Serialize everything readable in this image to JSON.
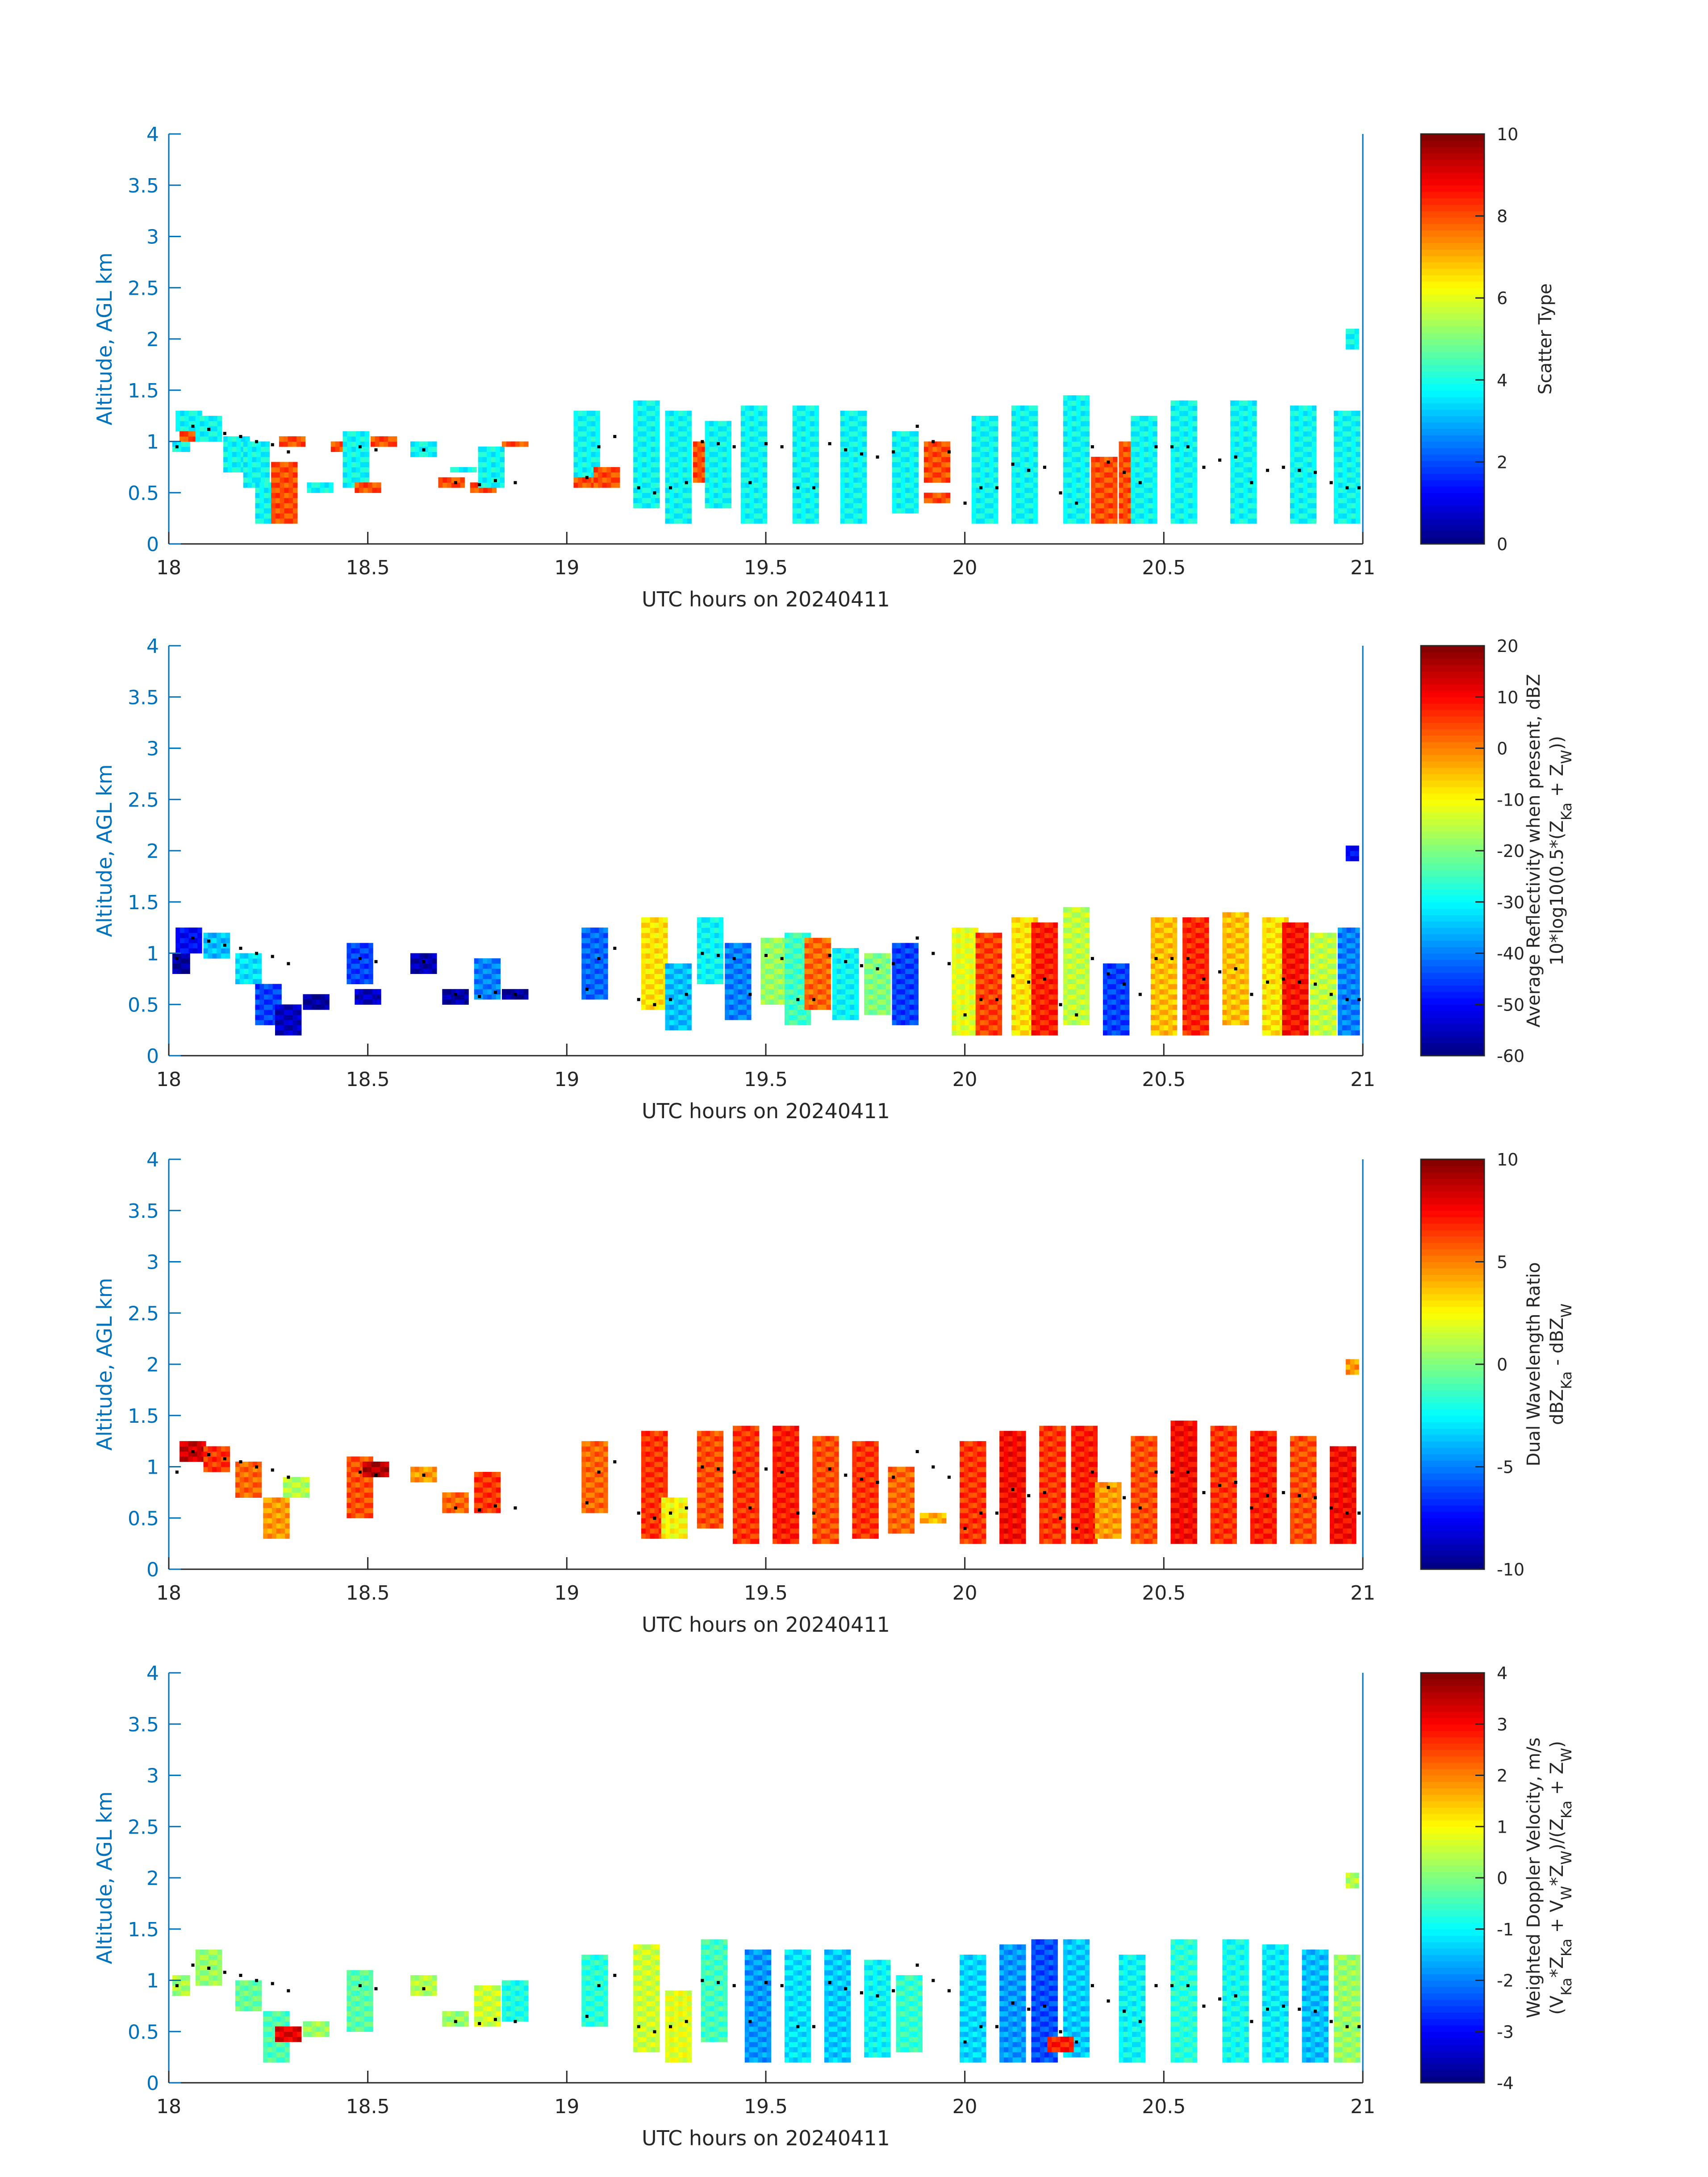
{
  "figure": {
    "background": "#ffffff",
    "axis_color": "#0072bd",
    "text_color": "#262626",
    "dot_color": "#000000"
  },
  "chart_data": [
    {
      "type": "heatmap",
      "title": "",
      "xlabel": "UTC hours on 20240411",
      "ylabel": "Altitude, AGL km",
      "xlim": [
        18,
        21
      ],
      "ylim": [
        0,
        4
      ],
      "xticks": [
        "18",
        "18.5",
        "19",
        "19.5",
        "20",
        "20.5",
        "21"
      ],
      "yticks": [
        "0",
        "0.5",
        "1",
        "1.5",
        "2",
        "2.5",
        "3",
        "3.5",
        "4"
      ],
      "colorbar": {
        "label_lines": [
          "Scatter Type"
        ],
        "range": [
          0,
          10
        ],
        "ticks": [
          "0",
          "2",
          "4",
          "6",
          "8",
          "10"
        ],
        "colormap": "jet"
      },
      "cells": [
        [
          18.02,
          0.9,
          1.0,
          3.8
        ],
        [
          18.05,
          1.1,
          1.3,
          3.8
        ],
        [
          18.06,
          1.0,
          1.1,
          8.0
        ],
        [
          18.1,
          1.0,
          1.25,
          3.8
        ],
        [
          18.17,
          0.7,
          1.05,
          3.8
        ],
        [
          18.22,
          0.55,
          1.0,
          3.8
        ],
        [
          18.25,
          0.2,
          0.6,
          3.8
        ],
        [
          18.29,
          0.2,
          0.8,
          8.0
        ],
        [
          18.31,
          0.95,
          1.05,
          8.0
        ],
        [
          18.38,
          0.5,
          0.6,
          3.8
        ],
        [
          18.44,
          0.9,
          1.0,
          8.0
        ],
        [
          18.47,
          0.55,
          1.1,
          3.8
        ],
        [
          18.5,
          0.5,
          0.6,
          8.0
        ],
        [
          18.54,
          0.95,
          1.05,
          8.0
        ],
        [
          18.64,
          0.85,
          1.0,
          3.8
        ],
        [
          18.71,
          0.55,
          0.65,
          8.0
        ],
        [
          18.74,
          0.7,
          0.75,
          3.8
        ],
        [
          18.79,
          0.5,
          0.6,
          8.0
        ],
        [
          18.81,
          0.55,
          0.95,
          3.8
        ],
        [
          18.87,
          0.95,
          1.0,
          8.0
        ],
        [
          19.05,
          0.55,
          1.3,
          3.8
        ],
        [
          19.05,
          0.55,
          0.65,
          8.0
        ],
        [
          19.1,
          0.55,
          0.75,
          8.0
        ],
        [
          19.2,
          0.35,
          1.4,
          3.8
        ],
        [
          19.28,
          0.2,
          1.3,
          3.8
        ],
        [
          19.35,
          0.6,
          1.0,
          8.0
        ],
        [
          19.38,
          0.35,
          1.2,
          3.8
        ],
        [
          19.47,
          0.2,
          1.35,
          3.8
        ],
        [
          19.6,
          0.2,
          1.35,
          3.8
        ],
        [
          19.72,
          0.2,
          1.3,
          3.8
        ],
        [
          19.85,
          0.3,
          1.1,
          3.8
        ],
        [
          19.93,
          0.6,
          1.0,
          8.0
        ],
        [
          19.93,
          0.4,
          0.5,
          8.0
        ],
        [
          20.05,
          0.2,
          1.25,
          3.8
        ],
        [
          20.15,
          0.2,
          1.35,
          3.8
        ],
        [
          20.28,
          0.2,
          1.45,
          3.8
        ],
        [
          20.35,
          0.2,
          0.85,
          8.0
        ],
        [
          20.42,
          0.2,
          1.0,
          8.0
        ],
        [
          20.45,
          0.2,
          1.25,
          3.8
        ],
        [
          20.55,
          0.2,
          1.4,
          3.8
        ],
        [
          20.7,
          0.2,
          1.4,
          3.8
        ],
        [
          20.85,
          0.2,
          1.35,
          3.8
        ],
        [
          20.96,
          0.2,
          1.3,
          3.8
        ],
        [
          20.99,
          1.9,
          2.1,
          3.8
        ]
      ]
    },
    {
      "type": "heatmap",
      "title": "",
      "xlabel": "UTC hours on 20240411",
      "ylabel": "Altitude, AGL km",
      "xlim": [
        18,
        21
      ],
      "ylim": [
        0,
        4
      ],
      "xticks": [
        "18",
        "18.5",
        "19",
        "19.5",
        "20",
        "20.5",
        "21"
      ],
      "yticks": [
        "0",
        "0.5",
        "1",
        "1.5",
        "2",
        "2.5",
        "3",
        "3.5",
        "4"
      ],
      "colorbar": {
        "label_lines": [
          "Average Reflectivity when present, dBZ",
          "10*log10(0.5*(Z_Ka + Z_W))"
        ],
        "range": [
          -60,
          20
        ],
        "ticks": [
          "-60",
          "-50",
          "-40",
          "-30",
          "-20",
          "-10",
          "0",
          "10",
          "20"
        ],
        "colormap": "jet"
      },
      "cells": [
        [
          18.02,
          0.8,
          1.0,
          -58
        ],
        [
          18.05,
          1.0,
          1.25,
          -50
        ],
        [
          18.12,
          0.95,
          1.2,
          -35
        ],
        [
          18.2,
          0.7,
          1.0,
          -32
        ],
        [
          18.25,
          0.3,
          0.7,
          -45
        ],
        [
          18.3,
          0.2,
          0.5,
          -55
        ],
        [
          18.37,
          0.45,
          0.6,
          -58
        ],
        [
          18.48,
          0.7,
          1.1,
          -45
        ],
        [
          18.5,
          0.5,
          0.65,
          -55
        ],
        [
          18.64,
          0.8,
          1.0,
          -56
        ],
        [
          18.72,
          0.5,
          0.65,
          -57
        ],
        [
          18.8,
          0.55,
          0.95,
          -40
        ],
        [
          18.87,
          0.55,
          0.65,
          -58
        ],
        [
          19.07,
          0.55,
          1.25,
          -42
        ],
        [
          19.22,
          0.45,
          1.35,
          -8
        ],
        [
          19.28,
          0.25,
          0.9,
          -35
        ],
        [
          19.36,
          0.7,
          1.35,
          -30
        ],
        [
          19.43,
          0.35,
          1.1,
          -40
        ],
        [
          19.52,
          0.5,
          1.15,
          -18
        ],
        [
          19.58,
          0.3,
          1.2,
          -25
        ],
        [
          19.63,
          0.45,
          1.15,
          2
        ],
        [
          19.7,
          0.35,
          1.05,
          -30
        ],
        [
          19.78,
          0.4,
          1.0,
          -20
        ],
        [
          19.85,
          0.3,
          1.1,
          -45
        ],
        [
          20.0,
          0.2,
          1.25,
          -12
        ],
        [
          20.06,
          0.2,
          1.2,
          5
        ],
        [
          20.15,
          0.2,
          1.35,
          -8
        ],
        [
          20.2,
          0.2,
          1.3,
          8
        ],
        [
          20.28,
          0.3,
          1.45,
          -15
        ],
        [
          20.38,
          0.2,
          0.9,
          -45
        ],
        [
          20.5,
          0.2,
          1.35,
          -5
        ],
        [
          20.58,
          0.2,
          1.35,
          7
        ],
        [
          20.68,
          0.3,
          1.4,
          -5
        ],
        [
          20.78,
          0.2,
          1.35,
          -8
        ],
        [
          20.83,
          0.2,
          1.3,
          9
        ],
        [
          20.9,
          0.2,
          1.2,
          -15
        ],
        [
          20.97,
          0.2,
          1.25,
          -40
        ],
        [
          20.99,
          1.9,
          2.05,
          -50
        ]
      ]
    },
    {
      "type": "heatmap",
      "title": "",
      "xlabel": "UTC hours on 20240411",
      "ylabel": "Altitude, AGL km",
      "xlim": [
        18,
        21
      ],
      "ylim": [
        0,
        4
      ],
      "xticks": [
        "18",
        "18.5",
        "19",
        "19.5",
        "20",
        "20.5",
        "21"
      ],
      "yticks": [
        "0",
        "0.5",
        "1",
        "1.5",
        "2",
        "2.5",
        "3",
        "3.5",
        "4"
      ],
      "colorbar": {
        "label_lines": [
          "Dual Wavelength Ratio",
          "dBZ_Ka - dBZ_W"
        ],
        "range": [
          -10,
          10
        ],
        "ticks": [
          "-10",
          "-5",
          "0",
          "5",
          "10"
        ],
        "colormap": "jet"
      },
      "cells": [
        [
          18.06,
          1.05,
          1.25,
          8.5
        ],
        [
          18.12,
          0.95,
          1.2,
          6.5
        ],
        [
          18.2,
          0.7,
          1.05,
          5.5
        ],
        [
          18.27,
          0.3,
          0.7,
          4.5
        ],
        [
          18.32,
          0.7,
          0.9,
          1.0
        ],
        [
          18.48,
          0.5,
          1.1,
          6.0
        ],
        [
          18.52,
          0.9,
          1.05,
          9.0
        ],
        [
          18.64,
          0.85,
          1.0,
          4.5
        ],
        [
          18.72,
          0.55,
          0.75,
          5.5
        ],
        [
          18.8,
          0.55,
          0.95,
          6.5
        ],
        [
          19.07,
          0.55,
          1.25,
          5.5
        ],
        [
          19.22,
          0.3,
          1.35,
          6.5
        ],
        [
          19.27,
          0.3,
          0.7,
          2.5
        ],
        [
          19.36,
          0.4,
          1.35,
          6.0
        ],
        [
          19.45,
          0.25,
          1.4,
          6.5
        ],
        [
          19.55,
          0.25,
          1.4,
          7.0
        ],
        [
          19.65,
          0.25,
          1.3,
          6.0
        ],
        [
          19.75,
          0.3,
          1.25,
          6.5
        ],
        [
          19.84,
          0.35,
          1.0,
          5.5
        ],
        [
          19.92,
          0.45,
          0.55,
          4.0
        ],
        [
          20.02,
          0.25,
          1.25,
          6.5
        ],
        [
          20.12,
          0.25,
          1.35,
          7.5
        ],
        [
          20.22,
          0.25,
          1.4,
          6.5
        ],
        [
          20.3,
          0.25,
          1.4,
          7.0
        ],
        [
          20.36,
          0.3,
          0.85,
          4.5
        ],
        [
          20.45,
          0.25,
          1.3,
          6.0
        ],
        [
          20.55,
          0.25,
          1.45,
          7.5
        ],
        [
          20.65,
          0.25,
          1.4,
          6.5
        ],
        [
          20.75,
          0.25,
          1.35,
          7.0
        ],
        [
          20.85,
          0.25,
          1.3,
          6.0
        ],
        [
          20.95,
          0.25,
          1.2,
          7.5
        ],
        [
          20.99,
          1.9,
          2.05,
          4.5
        ]
      ]
    },
    {
      "type": "heatmap",
      "title": "",
      "xlabel": "UTC hours on 20240411",
      "ylabel": "Altitude, AGL km",
      "xlim": [
        18,
        21
      ],
      "ylim": [
        0,
        4
      ],
      "xticks": [
        "18",
        "18.5",
        "19",
        "19.5",
        "20",
        "20.5",
        "21"
      ],
      "yticks": [
        "0",
        "0.5",
        "1",
        "1.5",
        "2",
        "2.5",
        "3",
        "3.5",
        "4"
      ],
      "colorbar": {
        "label_lines": [
          "Weighted Doppler Velocity, m/s",
          "(V_Ka*Z_Ka + V_W*Z_W)/(Z_Ka + Z_W)"
        ],
        "range": [
          -4,
          4
        ],
        "ticks": [
          "-4",
          "-3",
          "-2",
          "-1",
          "0",
          "1",
          "2",
          "3",
          "4"
        ],
        "colormap": "jet"
      },
      "cells": [
        [
          18.02,
          0.85,
          1.05,
          0.3
        ],
        [
          18.1,
          0.95,
          1.3,
          0.2
        ],
        [
          18.2,
          0.7,
          1.0,
          -0.2
        ],
        [
          18.27,
          0.2,
          0.7,
          -0.4
        ],
        [
          18.3,
          0.4,
          0.55,
          3.2
        ],
        [
          18.37,
          0.45,
          0.6,
          0.2
        ],
        [
          18.48,
          0.5,
          1.1,
          -0.3
        ],
        [
          18.64,
          0.85,
          1.05,
          0.4
        ],
        [
          18.72,
          0.55,
          0.7,
          0.2
        ],
        [
          18.8,
          0.55,
          0.95,
          0.6
        ],
        [
          18.87,
          0.6,
          1.0,
          -0.8
        ],
        [
          19.07,
          0.55,
          1.25,
          -0.7
        ],
        [
          19.2,
          0.3,
          1.35,
          0.6
        ],
        [
          19.28,
          0.2,
          0.9,
          0.8
        ],
        [
          19.37,
          0.4,
          1.4,
          -0.5
        ],
        [
          19.48,
          0.2,
          1.3,
          -1.8
        ],
        [
          19.58,
          0.2,
          1.3,
          -1.2
        ],
        [
          19.68,
          0.2,
          1.3,
          -1.4
        ],
        [
          19.78,
          0.25,
          1.2,
          -1.0
        ],
        [
          19.86,
          0.3,
          1.05,
          -0.6
        ],
        [
          20.02,
          0.2,
          1.25,
          -1.3
        ],
        [
          20.12,
          0.2,
          1.35,
          -1.8
        ],
        [
          20.2,
          0.2,
          1.4,
          -2.4
        ],
        [
          20.28,
          0.25,
          1.4,
          -1.4
        ],
        [
          20.24,
          0.3,
          0.45,
          2.8
        ],
        [
          20.42,
          0.2,
          1.25,
          -1.0
        ],
        [
          20.55,
          0.2,
          1.4,
          -0.7
        ],
        [
          20.68,
          0.2,
          1.4,
          -0.9
        ],
        [
          20.78,
          0.2,
          1.35,
          -1.1
        ],
        [
          20.88,
          0.2,
          1.3,
          -1.5
        ],
        [
          20.96,
          0.2,
          1.25,
          0.2
        ],
        [
          20.99,
          1.9,
          2.05,
          0.4
        ]
      ]
    }
  ]
}
